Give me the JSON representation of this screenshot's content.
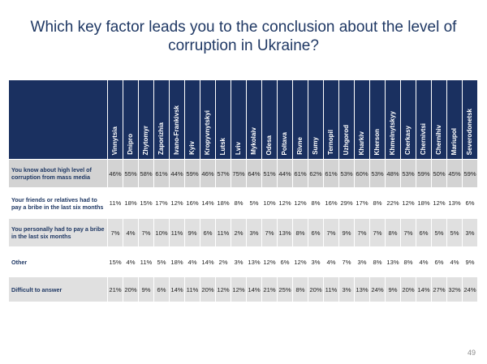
{
  "title_line1": "Which key factor leads you to the conclusion about the level of",
  "title_line2": "corruption in Ukraine?",
  "page_number": "49",
  "colors": {
    "header_bg": "#1a3060",
    "title": "#1f3864",
    "row_shade": "#e0e0e0"
  },
  "chart_data": {
    "type": "table",
    "title": "Which key factor leads you to the conclusion about the level of corruption in Ukraine?",
    "columns": [
      "Vinnytsia",
      "Dnipro",
      "Zhytomyr",
      "Zaporizhia",
      "Ivano-Frankivsk",
      "Kyiv",
      "Kropyvnytskyi",
      "Lutsk",
      "Lviv",
      "Mykolaiv",
      "Odesa",
      "Poltava",
      "Rivne",
      "Sumy",
      "Ternopil",
      "Uzhgorod",
      "Kharkiv",
      "Kherson",
      "Khmelnytskyy",
      "Cherkasy",
      "Chernivtsi",
      "Chernihiv",
      "Mariupol",
      "Severodonetsk"
    ],
    "rows": [
      {
        "label": "You know about high level of corruption from mass media",
        "values": [
          "46%",
          "55%",
          "58%",
          "61%",
          "44%",
          "59%",
          "46%",
          "57%",
          "75%",
          "64%",
          "51%",
          "44%",
          "61%",
          "62%",
          "61%",
          "53%",
          "60%",
          "53%",
          "48%",
          "53%",
          "59%",
          "50%",
          "45%",
          "59%"
        ]
      },
      {
        "label": "Your friends or relatives had to pay a bribe in the last six months",
        "values": [
          "11%",
          "18%",
          "15%",
          "17%",
          "12%",
          "16%",
          "14%",
          "18%",
          "8%",
          "5%",
          "10%",
          "12%",
          "12%",
          "8%",
          "16%",
          "29%",
          "17%",
          "8%",
          "22%",
          "12%",
          "18%",
          "12%",
          "13%",
          "6%"
        ]
      },
      {
        "label": "You personally had to pay a bribe in the last six months",
        "values": [
          "7%",
          "4%",
          "7%",
          "10%",
          "11%",
          "9%",
          "6%",
          "11%",
          "2%",
          "3%",
          "7%",
          "13%",
          "8%",
          "6%",
          "7%",
          "9%",
          "7%",
          "7%",
          "8%",
          "7%",
          "6%",
          "5%",
          "5%",
          "3%"
        ]
      },
      {
        "label": "Other",
        "values": [
          "15%",
          "4%",
          "11%",
          "5%",
          "18%",
          "4%",
          "14%",
          "2%",
          "3%",
          "13%",
          "12%",
          "6%",
          "12%",
          "3%",
          "4%",
          "7%",
          "3%",
          "8%",
          "13%",
          "8%",
          "4%",
          "6%",
          "4%",
          "9%"
        ]
      },
      {
        "label": "Difficult to answer",
        "values": [
          "21%",
          "20%",
          "9%",
          "6%",
          "14%",
          "11%",
          "20%",
          "12%",
          "12%",
          "14%",
          "21%",
          "25%",
          "8%",
          "20%",
          "11%",
          "3%",
          "13%",
          "24%",
          "9%",
          "20%",
          "14%",
          "27%",
          "32%",
          "24%"
        ]
      }
    ]
  }
}
